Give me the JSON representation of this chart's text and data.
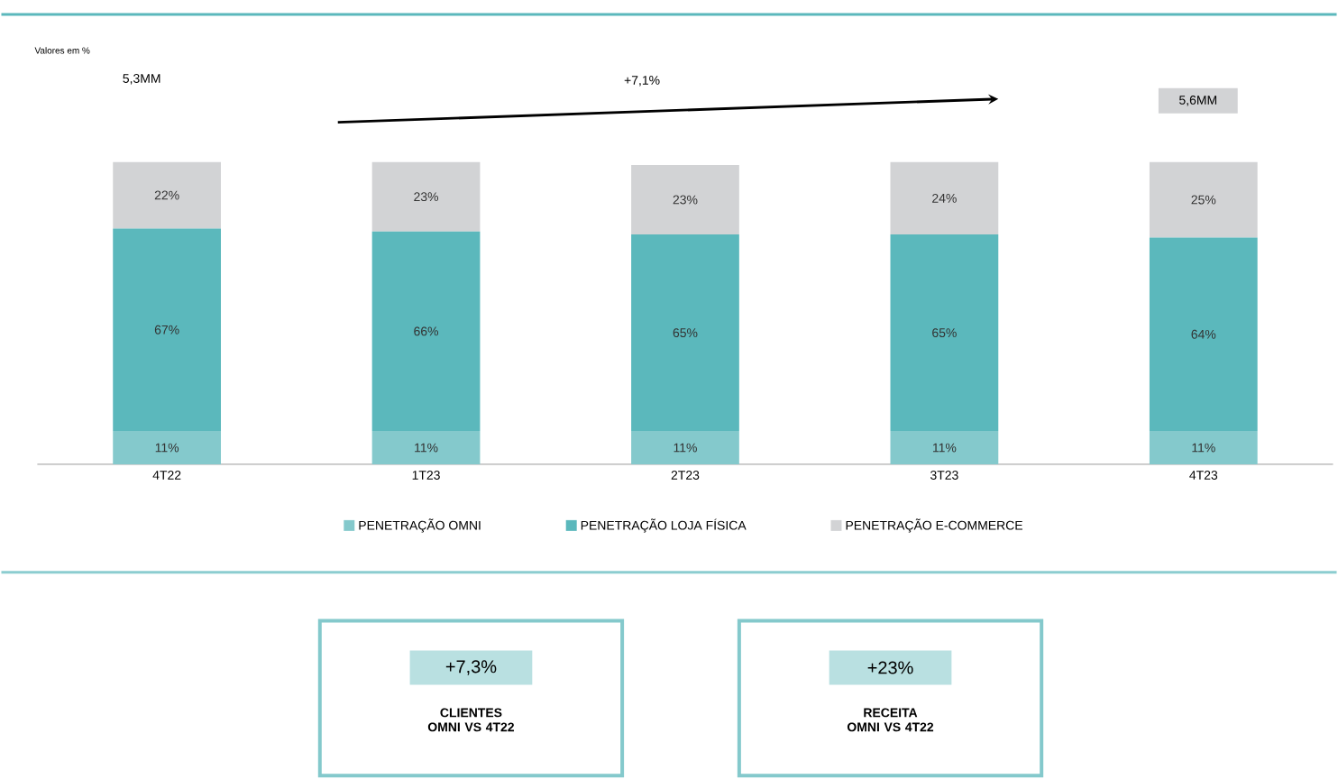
{
  "chart_data": {
    "type": "bar",
    "stacked": true,
    "data_labels": true,
    "legend": "bottom",
    "categories": [
      "4T22",
      "1T23",
      "2T23",
      "3T23",
      "4T23"
    ],
    "series": [
      {
        "name": "PENETRAÇÃO OMNI",
        "color": "#84c9cc",
        "values": [
          11,
          11,
          11,
          11,
          11
        ],
        "value_labels": [
          "11%",
          "11%",
          "11%",
          "11%",
          "11%"
        ]
      },
      {
        "name": "PENETRAÇÃO LOJA FÍSICA",
        "color": "#5bb8bc",
        "values": [
          67,
          66,
          65,
          65,
          64
        ],
        "value_labels": [
          "67%",
          "66%",
          "65%",
          "65%",
          "64%"
        ]
      },
      {
        "name": "PENETRAÇÃO E-COMMERCE",
        "color": "#d2d3d5",
        "values": [
          22,
          23,
          23,
          24,
          25
        ],
        "value_labels": [
          "22%",
          "23%",
          "23%",
          "24%",
          "25%"
        ]
      }
    ],
    "annotations": [
      "Valores em %",
      "5,3MM",
      "+7,1%",
      "5,6MM",
      "+7,3%",
      "CLIENTES OMNI VS 4T22",
      "+23%",
      "RECEITA OMNI VS 4T22"
    ]
  }
}
